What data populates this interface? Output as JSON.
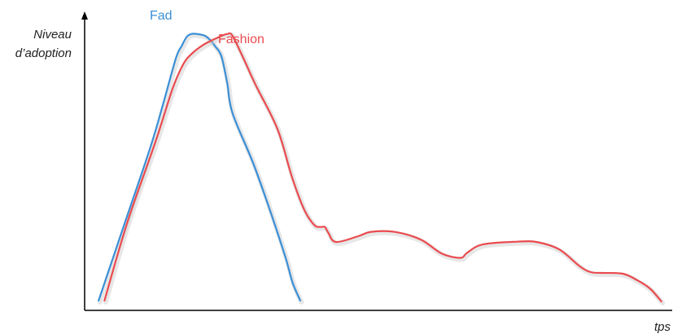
{
  "chart_data": {
    "type": "line",
    "title": "",
    "xlabel": "tps",
    "ylabel": "Niveau d’adoption",
    "ylabel_lines": [
      "Niveau",
      "d’adoption"
    ],
    "xlim": [
      0,
      100
    ],
    "ylim": [
      0,
      100
    ],
    "grid": false,
    "legend": "none",
    "series": [
      {
        "name": "Fad",
        "color": "#3b8fd6",
        "x": [
          2.4,
          6.9,
          11.3,
          13.4,
          15.6,
          16.6,
          17.5,
          18.3,
          19.2,
          20.6,
          21.6,
          22.3,
          23.4,
          24.4,
          25.3,
          28.9,
          32.0,
          34.4,
          35.6,
          36.9
        ],
        "y": [
          2.1,
          30.6,
          58.4,
          73.7,
          90.5,
          95.1,
          98.5,
          99.5,
          99.5,
          98.8,
          97.0,
          95.1,
          91.4,
          81.6,
          70.6,
          52.0,
          33.3,
          17.7,
          8.6,
          2.1
        ]
      },
      {
        "name": "Fashion",
        "color": "#ea4b4f",
        "x": [
          3.4,
          7.3,
          12.2,
          15.1,
          16.9,
          18.3,
          20.3,
          22.6,
          24.4,
          25.3,
          27.2,
          29.3,
          33.0,
          35.5,
          37.6,
          39.3,
          40.3,
          41.1,
          41.7,
          43.0,
          46.8,
          49.0,
          53.0,
          57.5,
          61.1,
          64.3,
          65.5,
          68.1,
          74.0,
          77.3,
          81.2,
          84.7,
          86.6,
          88.5,
          92.1,
          94.6,
          96.8,
          98.7
        ],
        "y": [
          2.1,
          30.6,
          60.6,
          79.8,
          88.5,
          92.2,
          95.5,
          98.0,
          99.5,
          98.8,
          90.5,
          80.7,
          64.8,
          47.1,
          35.2,
          29.7,
          29.0,
          29.0,
          26.9,
          23.5,
          25.6,
          27.2,
          27.2,
          24.4,
          19.3,
          17.7,
          19.6,
          22.6,
          23.6,
          23.5,
          20.8,
          14.7,
          12.5,
          12.2,
          11.9,
          9.5,
          6.4,
          1.8
        ]
      }
    ]
  }
}
